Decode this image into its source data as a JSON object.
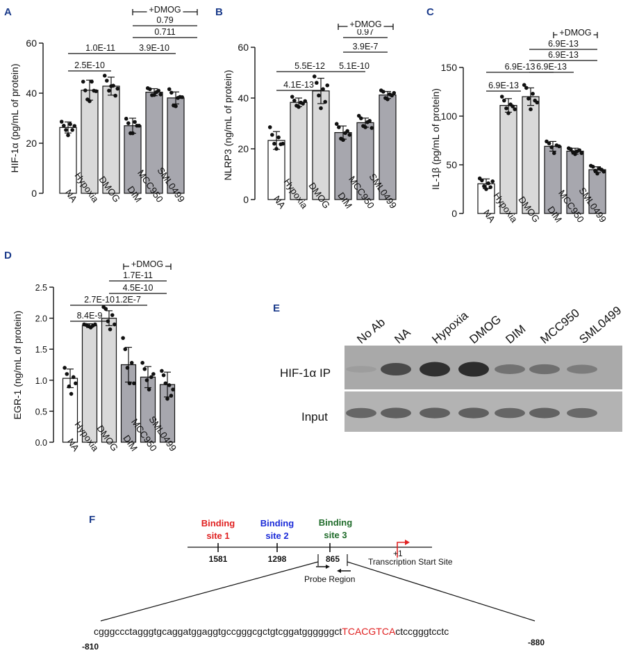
{
  "panel_labels": [
    "A",
    "B",
    "C",
    "D",
    "E",
    "F"
  ],
  "chart_data": [
    {
      "panel": "A",
      "type": "bar",
      "ylabel": "HIF-1α (pg/mL of protein)",
      "ylim": [
        0,
        60
      ],
      "yticks": [
        0,
        20,
        40,
        60
      ],
      "categories": [
        "NA",
        "Hypoxia",
        "DMOG",
        "DIM",
        "MCC950",
        "SML0499"
      ],
      "values": [
        26.3,
        41.2,
        42.8,
        27.0,
        40.4,
        38.1
      ],
      "errors": [
        2.2,
        4.0,
        3.6,
        3.0,
        1.4,
        2.4
      ],
      "points": [
        [
          28.6,
          27.0,
          25.3,
          23.2,
          27.6,
          25.3,
          26.9
        ],
        [
          44.6,
          41.1,
          37.5,
          36.8,
          44.6,
          41.0,
          40.8
        ],
        [
          47.0,
          45.0,
          41.0,
          42.8,
          43.0,
          39.0,
          41.8
        ],
        [
          29.8,
          28.0,
          24.0,
          24.0,
          28.5,
          27.0,
          27.0
        ],
        [
          42.0,
          41.6,
          39.2,
          39.3,
          40.4,
          41.0,
          39.5
        ],
        [
          41.6,
          40.2,
          35.1,
          34.8,
          38.1,
          38.5,
          38.4
        ]
      ],
      "fills": [
        "#ffffff",
        "#d9d9d9",
        "#d9d9d9",
        "#a7a7ae",
        "#a7a7ae",
        "#a7a7ae"
      ],
      "comparisons": [
        {
          "label": "2.5E-10"
        },
        {
          "label": "1.0E-11"
        },
        {
          "label": "3.9E-10"
        },
        {
          "label": "0.711"
        },
        {
          "label": "0.79"
        }
      ],
      "treatment_label": "+DMOG"
    },
    {
      "panel": "B",
      "type": "bar",
      "ylabel": "NLRP3 (ng/mL of protein)",
      "ylim": [
        0,
        60
      ],
      "yticks": [
        0,
        20,
        40,
        60
      ],
      "categories": [
        "NA",
        "Hypoxia",
        "DMOG",
        "DIM",
        "MCC950",
        "SML0499"
      ],
      "values": [
        23.3,
        38.3,
        42.8,
        26.4,
        30.3,
        41.2
      ],
      "errors": [
        3.5,
        1.7,
        5.0,
        2.6,
        1.8,
        1.4
      ],
      "points": [
        [
          28.5,
          25.5,
          22.0,
          20.0,
          24.5,
          21.8,
          22.0
        ],
        [
          40.5,
          39.0,
          37.0,
          36.5,
          38.2,
          37.8,
          38.8
        ],
        [
          48.5,
          46.0,
          41.0,
          36.0,
          43.5,
          38.5,
          45.0
        ],
        [
          29.8,
          28.5,
          24.0,
          23.5,
          26.2,
          27.0,
          25.5
        ],
        [
          33.0,
          32.0,
          29.0,
          28.5,
          30.5,
          31.0,
          28.2
        ],
        [
          43.0,
          42.5,
          40.0,
          39.5,
          41.5,
          41.0,
          42.0
        ]
      ],
      "fills": [
        "#ffffff",
        "#d9d9d9",
        "#d9d9d9",
        "#a7a7ae",
        "#a7a7ae",
        "#a7a7ae"
      ],
      "comparisons": [
        {
          "label": "4.1E-13"
        },
        {
          "label": "5.5E-12"
        },
        {
          "label": "5.1E-10"
        },
        {
          "label": "3.9E-7"
        },
        {
          "label": "0.97"
        }
      ],
      "treatment_label": "+DMOG"
    },
    {
      "panel": "C",
      "type": "bar",
      "ylabel": "IL-1β (pg/mL of protein)",
      "ylim": [
        0,
        150
      ],
      "yticks": [
        0,
        50,
        100,
        150
      ],
      "categories": [
        "NA",
        "Hypoxia",
        "DMOG",
        "DIM",
        "MCC950",
        "SML0499"
      ],
      "values": [
        30.5,
        111,
        120,
        69,
        64,
        45
      ],
      "errors": [
        5,
        7,
        9,
        5,
        3,
        3
      ],
      "points": [
        [
          36,
          34,
          28,
          25,
          31,
          27,
          33
        ],
        [
          120,
          116,
          108,
          103,
          112,
          110,
          107
        ],
        [
          132,
          129,
          118,
          107,
          123,
          116,
          114
        ],
        [
          74,
          72,
          68,
          62,
          70,
          69
        ],
        [
          67,
          66,
          63,
          61,
          64,
          65,
          62
        ],
        [
          49,
          48,
          44,
          41,
          46,
          45,
          43
        ]
      ],
      "fills": [
        "#ffffff",
        "#d9d9d9",
        "#d9d9d9",
        "#a7a7ae",
        "#a7a7ae",
        "#a7a7ae"
      ],
      "comparisons": [
        {
          "label": "6.9E-13"
        },
        {
          "label": "6.9E-13"
        },
        {
          "label": "6.9E-13"
        },
        {
          "label": "6.9E-13"
        },
        {
          "label": "6.9E-13"
        }
      ],
      "treatment_label": "+DMOG"
    },
    {
      "panel": "D",
      "type": "bar",
      "ylabel": "EGR-1 (ng/mL of protein)",
      "ylim": [
        0,
        2.5
      ],
      "yticks": [
        0.0,
        0.5,
        1.0,
        1.5,
        2.0,
        2.5
      ],
      "ytick_labels": [
        "0.0",
        "0.5",
        "1.0",
        "1.5",
        "2.0",
        "2.5"
      ],
      "categories": [
        "NA",
        "Hypoxia",
        "DMOG",
        "DIM",
        "MCC950",
        "SML0499"
      ],
      "values": [
        1.03,
        1.88,
        2.0,
        1.25,
        1.05,
        0.93
      ],
      "errors": [
        0.15,
        0.03,
        0.12,
        0.28,
        0.17,
        0.2
      ],
      "points": [
        [
          1.2,
          1.1,
          0.9,
          0.78,
          1.05,
          0.95
        ],
        [
          1.9,
          1.89,
          1.87,
          1.85,
          1.88,
          1.9
        ],
        [
          2.18,
          2.15,
          1.95,
          1.82,
          2.05,
          1.9
        ],
        [
          1.68,
          1.5,
          1.2,
          0.95,
          1.28,
          0.95
        ],
        [
          1.28,
          1.18,
          1.0,
          0.85,
          1.05,
          1.1
        ],
        [
          1.15,
          1.08,
          0.95,
          0.7,
          0.92,
          0.75,
          0.85
        ]
      ],
      "fills": [
        "#ffffff",
        "#d9d9d9",
        "#d9d9d9",
        "#a7a7ae",
        "#a7a7ae",
        "#a7a7ae"
      ],
      "comparisons": [
        {
          "label": "8.4E-9"
        },
        {
          "label": "2.7E-10"
        },
        {
          "label": "1.2E-7"
        },
        {
          "label": "4.5E-10"
        },
        {
          "label": "1.7E-11"
        }
      ],
      "treatment_label": "+DMOG"
    }
  ],
  "blot": {
    "lanes": [
      "No Ab",
      "NA",
      "Hypoxia",
      "DMOG",
      "DIM",
      "MCC950",
      "SML0499"
    ],
    "rows": [
      "HIF-1α IP",
      "Input"
    ],
    "ip_intensity": [
      0.1,
      0.72,
      0.92,
      0.95,
      0.42,
      0.45,
      0.35
    ],
    "input_intensity": [
      0.55,
      0.6,
      0.6,
      0.6,
      0.55,
      0.58,
      0.52
    ]
  },
  "diagram": {
    "sites": [
      {
        "label_line1": "Binding",
        "label_line2": "site 1",
        "position": "1581",
        "color": "#e02020"
      },
      {
        "label_line1": "Binding",
        "label_line2": "site 2",
        "position": "1298",
        "color": "#1a2ad8"
      },
      {
        "label_line1": "Binding",
        "label_line2": "site 3",
        "position": "865",
        "color": "#1f6b2a"
      }
    ],
    "tss_plus": "+1",
    "tss_label": "Transcription Start Site",
    "probe_label": "Probe Region",
    "sequence_pre": "cgggccctagggtgcaggatggaggtgccgggcgctgtcggatggggggct",
    "sequence_motif": "TCACGTCA",
    "sequence_post": "ctccgggtcctc",
    "left_coord": "-810",
    "right_coord": "-880",
    "motif_color": "#e02020"
  }
}
